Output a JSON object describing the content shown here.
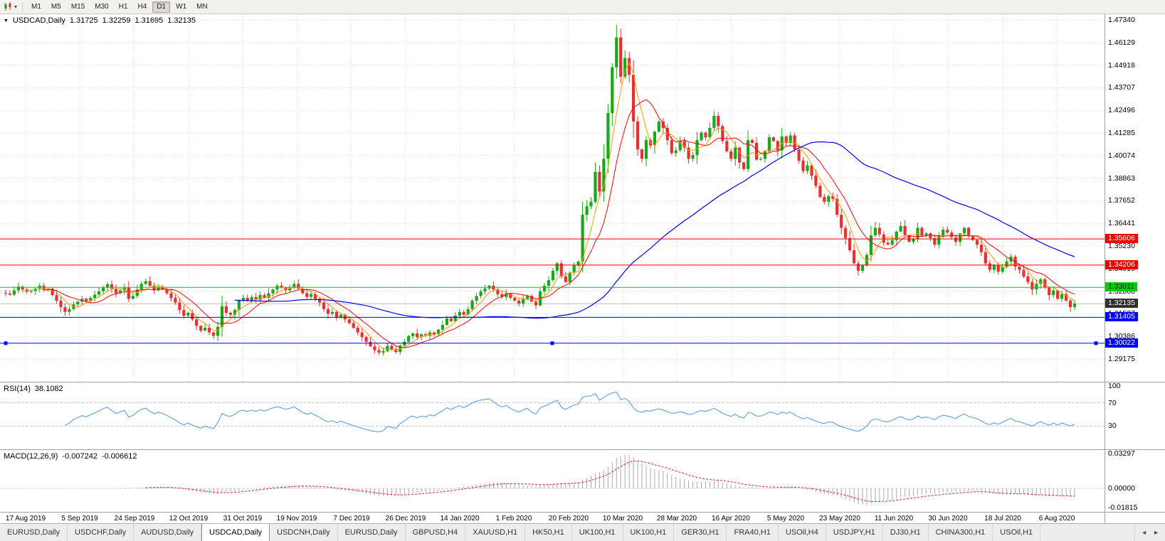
{
  "toolbar": {
    "timeframes": [
      "M1",
      "M5",
      "M15",
      "M30",
      "H1",
      "H4",
      "D1",
      "W1",
      "MN"
    ],
    "active_timeframe": "D1"
  },
  "chart_data": {
    "type": "candlestick",
    "symbol": "USDCAD",
    "period": "Daily",
    "title": "USDCAD,Daily",
    "ohlc_display": {
      "open": "1.31725",
      "high": "1.32259",
      "low": "1.31695",
      "close": "1.32135"
    },
    "axis_top": 1.4734,
    "axis_bottom": 1.29175,
    "price_axis": [
      "1.47340",
      "1.46129",
      "1.44918",
      "1.43707",
      "1.42496",
      "1.41285",
      "1.40074",
      "1.38863",
      "1.37652",
      "1.36441",
      "1.35230",
      "1.34019",
      "1.32808",
      "1.31597",
      "1.30386",
      "1.29175"
    ],
    "dates": [
      "17 Aug 2019",
      "5 Sep 2019",
      "24 Sep 2019",
      "12 Oct 2019",
      "31 Oct 2019",
      "19 Nov 2019",
      "7 Dec 2019",
      "26 Dec 2019",
      "14 Jan 2020",
      "1 Feb 2020",
      "20 Feb 2020",
      "10 Mar 2020",
      "28 Mar 2020",
      "16 Apr 2020",
      "5 May 2020",
      "23 May 2020",
      "11 Jun 2020",
      "30 Jun 2020",
      "18 Jul 2020",
      "6 Aug 2020"
    ],
    "first_open": 1.3272,
    "closes": [
      1.3268,
      1.3262,
      1.3285,
      1.3305,
      1.329,
      1.3278,
      1.3282,
      1.3295,
      1.331,
      1.3288,
      1.3295,
      1.326,
      1.323,
      1.3195,
      1.317,
      1.3185,
      1.321,
      1.3225,
      1.324,
      1.3228,
      1.3245,
      1.3262,
      1.328,
      1.3302,
      1.3318,
      1.3295,
      1.327,
      1.3285,
      1.33,
      1.324,
      1.3255,
      1.329,
      1.332,
      1.3335,
      1.331,
      1.3285,
      1.33,
      1.329,
      1.327,
      1.3245,
      1.322,
      1.318,
      1.315,
      1.3165,
      1.313,
      1.3095,
      1.307,
      1.3085,
      1.306,
      1.3042,
      1.309,
      1.32,
      1.3165,
      1.3155,
      1.318,
      1.323,
      1.3245,
      1.323,
      1.325,
      1.3235,
      1.326,
      1.3245,
      1.327,
      1.329,
      1.331,
      1.33,
      1.3285,
      1.33,
      1.332,
      1.3295,
      1.327,
      1.325,
      1.3265,
      1.324,
      1.322,
      1.3185,
      1.316,
      1.317,
      1.314,
      1.3155,
      1.313,
      1.311,
      1.3085,
      1.306,
      1.3035,
      1.301,
      1.2985,
      1.2965,
      1.2952,
      1.296,
      1.2988,
      1.297,
      1.2955,
      1.299,
      1.301,
      1.304,
      1.3055,
      1.3035,
      1.305,
      1.3042,
      1.306,
      1.305,
      1.3075,
      1.31,
      1.3135,
      1.312,
      1.315,
      1.317,
      1.3155,
      1.3185,
      1.323,
      1.3255,
      1.328,
      1.3295,
      1.331,
      1.329,
      1.3265,
      1.325,
      1.327,
      1.3245,
      1.323,
      1.3215,
      1.324,
      1.3255,
      1.3225,
      1.3205,
      1.328,
      1.331,
      1.334,
      1.339,
      1.343,
      1.336,
      1.333,
      1.338,
      1.342,
      1.344,
      1.369,
      1.3735,
      1.376,
      1.392,
      1.3815,
      1.399,
      1.4235,
      1.448,
      1.464,
      1.443,
      1.453,
      1.444,
      1.419,
      1.404,
      1.399,
      1.409,
      1.4062,
      1.4135,
      1.419,
      1.4155,
      1.409,
      1.402,
      1.4035,
      1.4085,
      1.405,
      1.399,
      1.401,
      1.409,
      1.413,
      1.4105,
      1.4155,
      1.422,
      1.4165,
      1.4085,
      1.403,
      1.399,
      1.405,
      1.397,
      1.3935,
      1.409,
      1.4075,
      1.3985,
      1.399,
      1.403,
      1.4105,
      1.4085,
      1.4035,
      1.411,
      1.4075,
      1.4115,
      1.404,
      1.398,
      1.3925,
      1.3955,
      1.39,
      1.3845,
      1.3785,
      1.376,
      1.379,
      1.3775,
      1.369,
      1.362,
      1.3565,
      1.35,
      1.343,
      1.339,
      1.342,
      1.3475,
      1.358,
      1.362,
      1.3585,
      1.354,
      1.353,
      1.3555,
      1.36,
      1.363,
      1.358,
      1.3545,
      1.356,
      1.362,
      1.3575,
      1.359,
      1.3565,
      1.353,
      1.358,
      1.361,
      1.3595,
      1.357,
      1.3545,
      1.359,
      1.362,
      1.3575,
      1.3555,
      1.353,
      1.349,
      1.343,
      1.3395,
      1.342,
      1.3385,
      1.341,
      1.344,
      1.3465,
      1.3412,
      1.3395,
      1.336,
      1.333,
      1.329,
      1.332,
      1.3345,
      1.33,
      1.326,
      1.3285,
      1.324,
      1.3265,
      1.323,
      1.3195,
      1.3214
    ],
    "hlines": [
      {
        "value": 1.35606,
        "label": "1.35606",
        "color": "#ee0000",
        "text_color": "#ffffff",
        "selected": false
      },
      {
        "value": 1.34206,
        "label": "1.34206",
        "color": "#ee0000",
        "text_color": "#ffffff",
        "selected": false
      },
      {
        "value": 1.33011,
        "label": "1.33011",
        "color": "#00cc00",
        "text_color": "#003300",
        "selected": false
      },
      {
        "value": 1.31405,
        "label": "1.31405",
        "color": "#0000ff",
        "text_color": "#ffffff",
        "selected": false
      },
      {
        "value": 1.30022,
        "label": "1.30022",
        "color": "#0000ff",
        "text_color": "#ffffff",
        "selected": true
      }
    ],
    "current_price": {
      "value": 1.32135,
      "label": "1.32135",
      "badge_color": "#303030",
      "text_color": "#ffffff"
    },
    "colors": {
      "up": "#18a818",
      "down": "#e23232",
      "ma_fast": "#ff9900",
      "ma_mid": "#ff0000",
      "ma_slow": "#0000ee",
      "grid": "#dadada",
      "current_line": "#bbbbbb"
    }
  },
  "rsi": {
    "label": "RSI(14)",
    "value": "38.1082",
    "axis": [
      "100",
      "70",
      "30"
    ],
    "color": "#4d97e0",
    "level_color": "#c4c4c4"
  },
  "macd": {
    "label": "MACD(12,26,9)",
    "value_main": "-0.007242",
    "value_signal": "-0.006612",
    "axis": [
      "0.03297",
      "0.00000",
      "-0.01815"
    ],
    "hist_color": "#aaaaaa",
    "signal_color": "#e02020"
  },
  "tabs": {
    "items": [
      "EURUSD,Daily",
      "USDCHF,Daily",
      "AUDUSD,Daily",
      "USDCAD,Daily",
      "USDCNH,Daily",
      "EURUSD,Daily",
      "GBPUSD,H4",
      "XAUUSD,H1",
      "HK50,H1",
      "UK100,H1",
      "UK100,H1",
      "GER30,H1",
      "FRA40,H1",
      "USOil,H4",
      "USDJPY,H1",
      "DJ30,H1",
      "CHINA300,H1",
      "USOil,H1"
    ],
    "active_index": 3,
    "scroll_left_icon": "◄",
    "scroll_right_icon": "►"
  }
}
